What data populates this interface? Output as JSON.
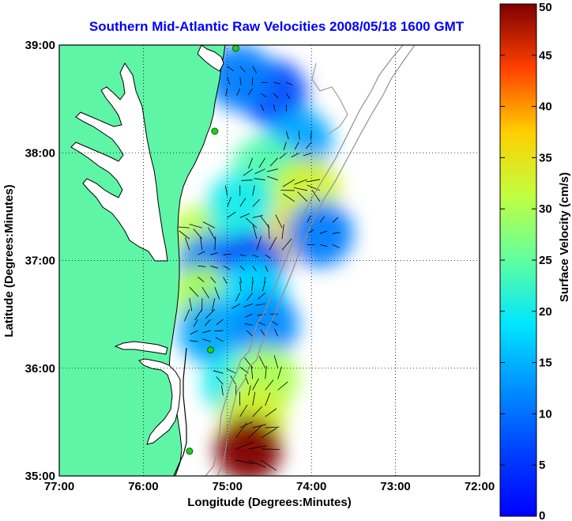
{
  "title": "Southern Mid-Atlantic Raw Velocities 2008/05/18 1600 GMT",
  "axes": {
    "xlabel": "Longitude (Degrees:Minutes)",
    "ylabel": "Latitude (Degrees:Minutes)",
    "xticks": [
      "77:00",
      "76:00",
      "75:00",
      "74:00",
      "73:00",
      "72:00"
    ],
    "yticks": [
      "39:00",
      "38:00",
      "37:00",
      "36:00",
      "35:00"
    ],
    "xlim": [
      -77,
      -72
    ],
    "ylim": [
      35,
      39
    ],
    "grid": true
  },
  "colorbar": {
    "label": "Surface Velocity (cm/s)",
    "ticks": [
      "50",
      "45",
      "40",
      "35",
      "30",
      "25",
      "20",
      "15",
      "10",
      "5",
      "0"
    ],
    "range": [
      0,
      50
    ],
    "colormap": "jet"
  },
  "colors": {
    "title": "#0000ff",
    "land": "#5ff5a6",
    "coast": "#000000",
    "bathymetry": "#909090",
    "grid": "#000000",
    "station": "#22cc22"
  },
  "map": {
    "region": "Southern Mid-Atlantic",
    "stations": [
      {
        "lon": -74.9,
        "lat": 38.97
      },
      {
        "lon": -75.15,
        "lat": 38.2
      },
      {
        "lon": -75.2,
        "lat": 36.17
      },
      {
        "lon": -75.45,
        "lat": 35.23
      }
    ],
    "velocity_zones": [
      {
        "lon": -74.45,
        "lat": 38.55,
        "speed": 7
      },
      {
        "lon": -74.85,
        "lat": 38.7,
        "speed": 11
      },
      {
        "lon": -74.15,
        "lat": 38.1,
        "speed": 14
      },
      {
        "lon": -74.55,
        "lat": 37.85,
        "speed": 24
      },
      {
        "lon": -74.05,
        "lat": 37.65,
        "speed": 33
      },
      {
        "lon": -75.3,
        "lat": 37.2,
        "speed": 31
      },
      {
        "lon": -74.5,
        "lat": 37.2,
        "speed": 36
      },
      {
        "lon": -74.85,
        "lat": 37.5,
        "speed": 20
      },
      {
        "lon": -73.9,
        "lat": 37.25,
        "speed": 11
      },
      {
        "lon": -75.2,
        "lat": 36.95,
        "speed": 11
      },
      {
        "lon": -74.7,
        "lat": 36.95,
        "speed": 6
      },
      {
        "lon": -75.3,
        "lat": 36.65,
        "speed": 30
      },
      {
        "lon": -74.7,
        "lat": 36.7,
        "speed": 18
      },
      {
        "lon": -75.2,
        "lat": 36.35,
        "speed": 14
      },
      {
        "lon": -74.55,
        "lat": 36.4,
        "speed": 12
      },
      {
        "lon": -74.9,
        "lat": 35.85,
        "speed": 20
      },
      {
        "lon": -74.55,
        "lat": 35.9,
        "speed": 30
      },
      {
        "lon": -74.7,
        "lat": 35.55,
        "speed": 33
      },
      {
        "lon": -74.75,
        "lat": 35.25,
        "speed": 50
      }
    ]
  }
}
